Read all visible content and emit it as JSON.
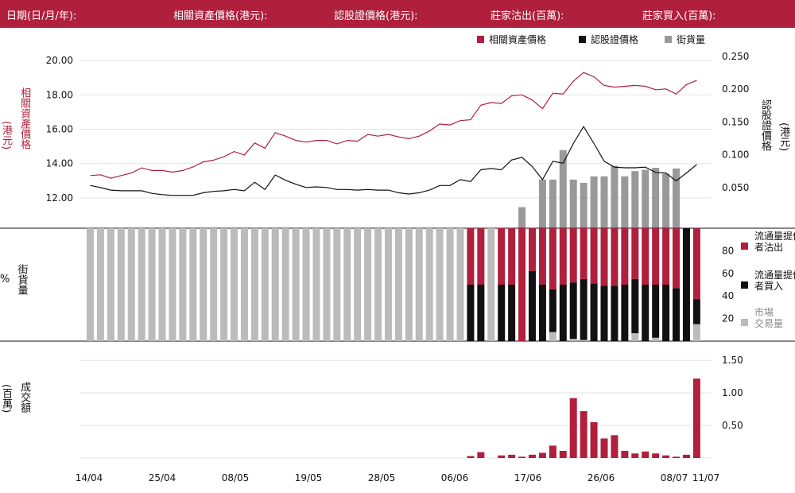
{
  "header": {
    "fields": [
      "日期(日/月/年):",
      "相關資產價格(港元):",
      "認股證價格(港元):",
      "莊家沽出(百萬):",
      "莊家買入(百萬):"
    ]
  },
  "colors": {
    "brand": "#b01f3c",
    "warrant": "#111111",
    "street": "#999999",
    "market": "#bbbbbb"
  },
  "axis_labels": {
    "top_left": {
      "main": "相關資產價格",
      "unit": "(港元)"
    },
    "top_right": {
      "main": "認股證價格",
      "unit": "(港元)"
    },
    "mid_left": {
      "main": "街貨量",
      "unit": "%"
    },
    "bottom_left": {
      "main": "成交額",
      "unit": "(百萬)"
    }
  },
  "chart_data": [
    {
      "type": "line",
      "name": "top-panel",
      "legend": [
        "相關資產價格",
        "認股證價格",
        "街貨量"
      ],
      "x_ticks": [
        "14/04",
        "25/04",
        "08/05",
        "19/05",
        "28/05",
        "06/06",
        "17/06",
        "26/06",
        "08/07",
        "11/07"
      ],
      "y_left_ticks": [
        "12.00",
        "14.00",
        "16.00",
        "18.00",
        "20.00"
      ],
      "y_right_ticks": [
        "0.050",
        "0.100",
        "0.150",
        "0.200",
        "0.250"
      ],
      "y_left_range": [
        10.7,
        20.7
      ],
      "y_right_range": [
        0.0,
        0.262
      ],
      "underlying_price": [
        13.3,
        13.35,
        13.15,
        13.3,
        13.45,
        13.75,
        13.6,
        13.6,
        13.5,
        13.6,
        13.8,
        14.1,
        14.2,
        14.4,
        14.7,
        14.5,
        15.2,
        14.9,
        15.8,
        15.6,
        15.35,
        15.25,
        15.35,
        15.35,
        15.15,
        15.35,
        15.3,
        15.7,
        15.6,
        15.7,
        15.55,
        15.45,
        15.6,
        15.9,
        16.3,
        16.25,
        16.5,
        16.55,
        17.4,
        17.55,
        17.5,
        17.95,
        18.0,
        17.7,
        17.2,
        18.1,
        18.05,
        18.8,
        19.3,
        19.05,
        18.55,
        18.45,
        18.5,
        18.55,
        18.5,
        18.3,
        18.35,
        18.05,
        18.6,
        18.85
      ],
      "warrant_price": [
        0.053,
        0.05,
        0.046,
        0.045,
        0.045,
        0.045,
        0.041,
        0.039,
        0.038,
        0.038,
        0.038,
        0.042,
        0.044,
        0.045,
        0.047,
        0.045,
        0.058,
        0.047,
        0.069,
        0.061,
        0.055,
        0.05,
        0.051,
        0.05,
        0.047,
        0.047,
        0.046,
        0.047,
        0.046,
        0.046,
        0.042,
        0.04,
        0.042,
        0.046,
        0.053,
        0.053,
        0.062,
        0.059,
        0.077,
        0.079,
        0.077,
        0.092,
        0.096,
        0.082,
        0.062,
        0.09,
        0.087,
        0.117,
        0.143,
        0.117,
        0.09,
        0.081,
        0.08,
        0.08,
        0.081,
        0.073,
        0.072,
        0.06,
        0.072,
        0.085
      ],
      "outstanding_from_index": 42,
      "outstanding": [
        0.02,
        0,
        0.062,
        0.062,
        0.107,
        0.062,
        0.057,
        0.067,
        0.067,
        0.083,
        0.067,
        0.075,
        0.077,
        0.08,
        0.071,
        0.079
      ]
    },
    {
      "type": "bar",
      "name": "middle-panel",
      "y_ticks": [
        "20",
        "40",
        "60",
        "80"
      ],
      "ylim": [
        0,
        100
      ],
      "legend": [
        {
          "label": "流通量提供者沽出",
          "color": "#b01f3c"
        },
        {
          "label": "流通量提供者買入",
          "color": "#111111"
        },
        {
          "label": "市場交易量",
          "color": "#bbbbbb"
        }
      ],
      "note": "each bar stacks market (grey) + buy (black) from bottom; sell (red) fills to 100%",
      "market": [
        100,
        100,
        100,
        100,
        100,
        100,
        100,
        100,
        100,
        100,
        100,
        100,
        100,
        100,
        100,
        100,
        100,
        100,
        100,
        100,
        100,
        100,
        100,
        100,
        100,
        100,
        100,
        100,
        100,
        100,
        100,
        100,
        100,
        100,
        100,
        100,
        100,
        0,
        0,
        100,
        0,
        0,
        0,
        0,
        0,
        8,
        0,
        2,
        1,
        0,
        0,
        0,
        0,
        7,
        0,
        3,
        0,
        0,
        0,
        15
      ],
      "buy": [
        0,
        0,
        0,
        0,
        0,
        0,
        0,
        0,
        0,
        0,
        0,
        0,
        0,
        0,
        0,
        0,
        0,
        0,
        0,
        0,
        0,
        0,
        0,
        0,
        0,
        0,
        0,
        0,
        0,
        0,
        0,
        0,
        0,
        0,
        0,
        0,
        0,
        50,
        50,
        0,
        50,
        50,
        0,
        62,
        50,
        38,
        50,
        50,
        54,
        51,
        49,
        49,
        50,
        48,
        50,
        47,
        50,
        47,
        100,
        22
      ],
      "sell": [
        0,
        0,
        0,
        0,
        0,
        0,
        0,
        0,
        0,
        0,
        0,
        0,
        0,
        0,
        0,
        0,
        0,
        0,
        0,
        0,
        0,
        0,
        0,
        0,
        0,
        0,
        0,
        0,
        0,
        0,
        0,
        0,
        0,
        0,
        0,
        0,
        0,
        50,
        50,
        0,
        50,
        50,
        100,
        38,
        50,
        54,
        50,
        48,
        45,
        49,
        51,
        51,
        50,
        45,
        50,
        50,
        50,
        53,
        0,
        63
      ]
    },
    {
      "type": "bar",
      "name": "bottom-panel",
      "y_ticks": [
        "0.50",
        "1.00",
        "1.50"
      ],
      "ylim": [
        0,
        1.6
      ],
      "turnover": [
        0,
        0,
        0,
        0,
        0,
        0,
        0,
        0,
        0,
        0,
        0,
        0,
        0,
        0,
        0,
        0,
        0,
        0,
        0,
        0,
        0,
        0,
        0,
        0,
        0,
        0,
        0,
        0,
        0,
        0,
        0,
        0,
        0,
        0,
        0,
        0,
        0,
        0.03,
        0.09,
        0,
        0.04,
        0.05,
        0.02,
        0.05,
        0.08,
        0.19,
        0.11,
        0.92,
        0.72,
        0.55,
        0.3,
        0.35,
        0.11,
        0.07,
        0.1,
        0.07,
        0.04,
        0.02,
        0.05,
        1.22
      ]
    }
  ]
}
